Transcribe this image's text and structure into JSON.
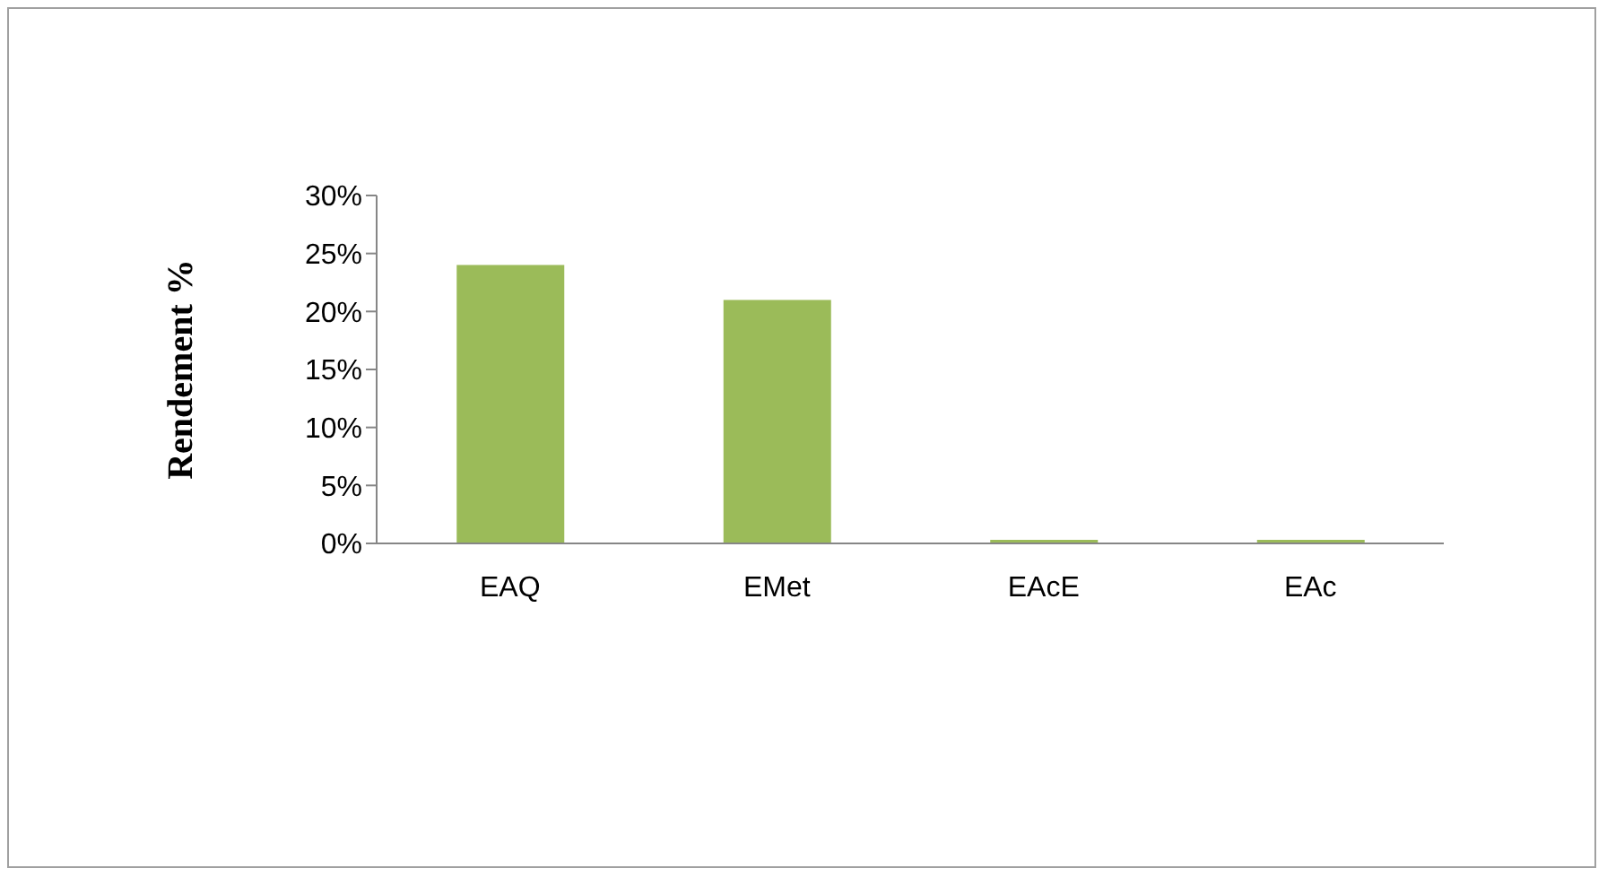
{
  "chart_data": {
    "type": "bar",
    "ylabel": "Rendement %",
    "categories": [
      "EAQ",
      "EMet",
      "EAcE",
      "EAc"
    ],
    "values": [
      24,
      21,
      0.3,
      0.3
    ],
    "color": "#9bbb59",
    "ylim": [
      0,
      30
    ],
    "yticks": [
      {
        "value": 0,
        "label": "0%"
      },
      {
        "value": 5,
        "label": "5%"
      },
      {
        "value": 10,
        "label": "10%"
      },
      {
        "value": 15,
        "label": "15%"
      },
      {
        "value": 20,
        "label": "20%"
      },
      {
        "value": 25,
        "label": "25%"
      },
      {
        "value": 30,
        "label": "30%"
      }
    ],
    "grid": false,
    "legend": false
  }
}
